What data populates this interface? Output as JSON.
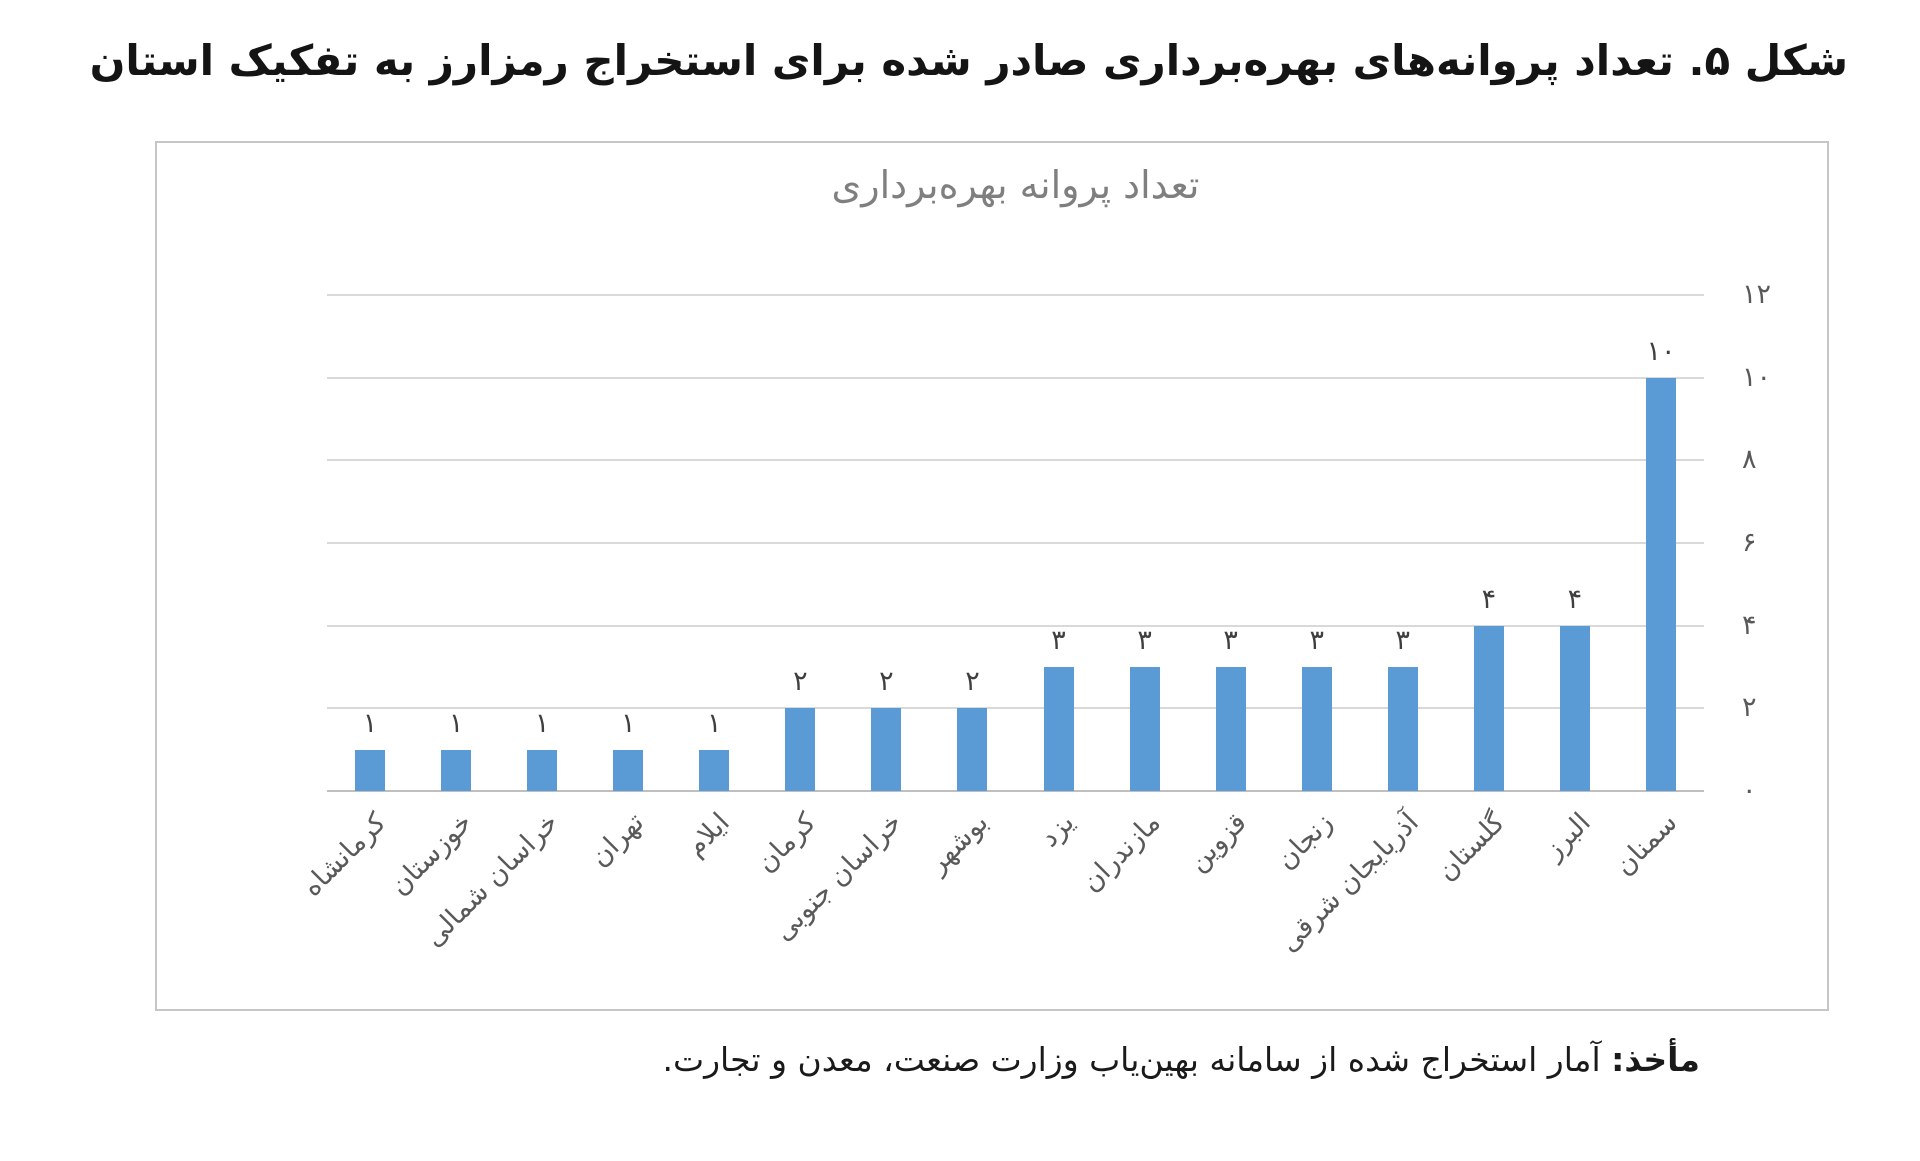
{
  "page": {
    "title": "شکل ۵. تعداد پروانه‌های بهره‌برداری صادر شده برای استخراج رمزارز به تفکیک استان"
  },
  "footer": {
    "source_label": "مأخذ:",
    "source_text": "آمار استخراج شده از سامانه بهین‌یاب وزارت صنعت، معدن و تجارت."
  },
  "chart_data": {
    "type": "bar",
    "title": "تعداد پروانه بهره‌برداری",
    "categories": [
      "کرمانشاه",
      "خوزستان",
      "خراسان شمالی",
      "تهران",
      "ایلام",
      "کرمان",
      "خراسان جنوبی",
      "بوشهر",
      "یزد",
      "مازندران",
      "قزوین",
      "زنجان",
      "آذربایجان شرقی",
      "گلستان",
      "البرز",
      "سمنان"
    ],
    "values": [
      1,
      1,
      1,
      1,
      1,
      2,
      2,
      2,
      3,
      3,
      3,
      3,
      3,
      4,
      4,
      10
    ],
    "value_labels": [
      "۱",
      "۱",
      "۱",
      "۱",
      "۱",
      "۲",
      "۲",
      "۲",
      "۳",
      "۳",
      "۳",
      "۳",
      "۳",
      "۴",
      "۴",
      "۱۰"
    ],
    "xlabel": "",
    "ylabel": "",
    "y_axis": {
      "side": "right",
      "min": 0,
      "max": 12,
      "tick_step": 2,
      "tick_labels": [
        "۰",
        "۲",
        "۴",
        "۶",
        "۸",
        "۱۰",
        "۱۲"
      ]
    },
    "ylim": [
      0,
      12
    ],
    "grid": true,
    "legend": false,
    "bar_color": "#5B9BD5",
    "label_color": "#3f3f3f",
    "axis_text_color": "#595959",
    "gridline_color": "#d9d9d9"
  }
}
